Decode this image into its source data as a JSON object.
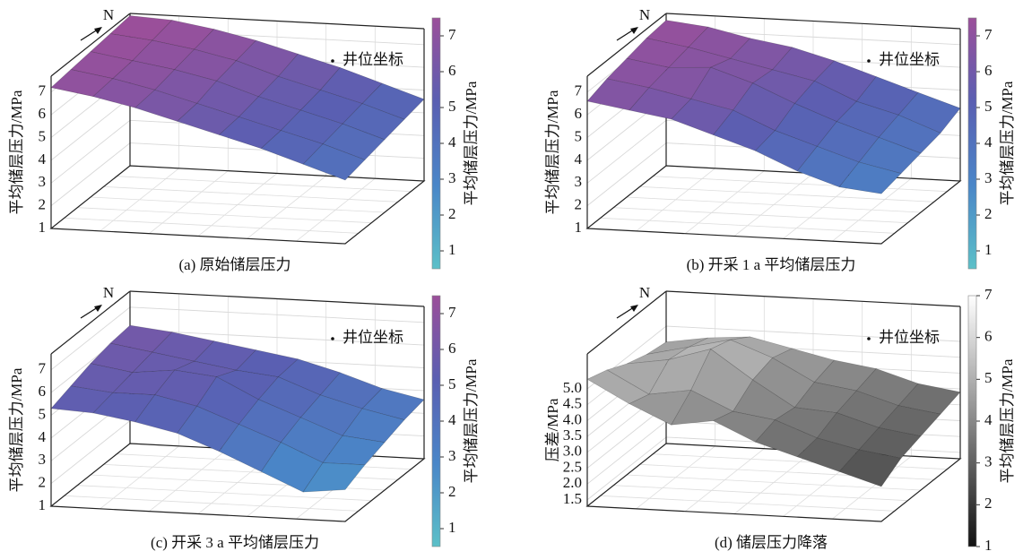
{
  "chart_data": [
    {
      "type": "surface3d",
      "caption": "(a) 原始储层压力",
      "zlabel": "平均储层压力/MPa",
      "north": "N",
      "legend": "井位坐标",
      "zlim": [
        1,
        7.7
      ],
      "zticks": [
        1,
        2,
        3,
        4,
        5,
        6,
        7
      ],
      "z": [
        [
          7.2,
          6.9,
          6.5,
          6.0,
          5.5,
          5.0,
          4.4,
          3.8
        ],
        [
          7.3,
          7.0,
          6.6,
          6.1,
          5.6,
          5.1,
          4.6,
          4.0
        ],
        [
          7.4,
          7.1,
          6.8,
          6.4,
          5.8,
          5.3,
          4.8,
          4.2
        ],
        [
          7.5,
          7.3,
          7.0,
          6.6,
          6.0,
          5.5,
          5.0,
          4.4
        ],
        [
          7.6,
          7.5,
          7.2,
          6.8,
          6.3,
          5.8,
          5.2,
          4.6
        ]
      ],
      "colorbar": {
        "label": "平均储层压力/MPa",
        "lim": [
          0.5,
          7.5
        ],
        "ticks": [
          1,
          2,
          3,
          4,
          5,
          6,
          7
        ],
        "colors": [
          "#5cc0c8",
          "#4a86c8",
          "#5a5fb2",
          "#9b4f9a"
        ]
      }
    },
    {
      "type": "surface3d",
      "caption": "(b) 开采 1 a 平均储层压力",
      "zlabel": "平均储层压力/MPa",
      "north": "N",
      "legend": "井位坐标",
      "zlim": [
        1,
        7.7
      ],
      "zticks": [
        1,
        2,
        3,
        4,
        5,
        6,
        7
      ],
      "z": [
        [
          6.6,
          6.3,
          6.0,
          5.4,
          4.8,
          4.0,
          3.4,
          3.2
        ],
        [
          6.9,
          6.6,
          6.2,
          5.8,
          5.0,
          4.4,
          3.8,
          3.4
        ],
        [
          7.1,
          6.8,
          6.9,
          6.3,
          5.5,
          4.8,
          4.2,
          3.6
        ],
        [
          7.3,
          7.0,
          6.6,
          6.2,
          5.8,
          5.0,
          4.5,
          3.8
        ],
        [
          7.4,
          7.2,
          6.8,
          6.5,
          6.0,
          5.4,
          4.8,
          4.2
        ]
      ],
      "colorbar": {
        "label": "平均储层压力/MPa",
        "lim": [
          0.5,
          7.5
        ],
        "ticks": [
          1,
          2,
          3,
          4,
          5,
          6,
          7
        ],
        "colors": [
          "#5cc0c8",
          "#4a86c8",
          "#5a5fb2",
          "#9b4f9a"
        ]
      }
    },
    {
      "type": "surface3d",
      "caption": "(c) 开采 3 a 平均储层压力",
      "zlabel": "平均储层压力/MPa",
      "north": "N",
      "legend": "井位坐标",
      "zlim": [
        1,
        7.7
      ],
      "zticks": [
        1,
        2,
        3,
        4,
        5,
        6,
        7
      ],
      "z": [
        [
          5.3,
          5.2,
          4.9,
          4.5,
          3.8,
          3.0,
          2.2,
          2.4
        ],
        [
          5.6,
          5.4,
          5.4,
          5.0,
          4.3,
          3.6,
          2.8,
          2.8
        ],
        [
          5.9,
          5.6,
          5.8,
          5.6,
          4.7,
          4.0,
          3.3,
          3.1
        ],
        [
          6.1,
          5.8,
          5.5,
          5.2,
          5.0,
          4.3,
          3.8,
          3.4
        ],
        [
          6.2,
          6.0,
          5.7,
          5.4,
          5.1,
          4.6,
          4.0,
          3.6
        ]
      ],
      "colorbar": {
        "label": "平均储层压力/MPa",
        "lim": [
          0.5,
          7.5
        ],
        "ticks": [
          1,
          2,
          3,
          4,
          5,
          6,
          7
        ],
        "colors": [
          "#5cc0c8",
          "#4a86c8",
          "#5a5fb2",
          "#9b4f9a"
        ]
      }
    },
    {
      "type": "surface3d",
      "caption": "(d) 储层压力降落",
      "zlabel": "压差/MPa",
      "north": "N",
      "legend": "井位坐标",
      "zlim": [
        1.3,
        6.1
      ],
      "zticks": [
        1.5,
        {
          "value": 2,
          "label": "2.0"
        },
        2.5,
        {
          "value": 3,
          "label": "3.0"
        },
        3.5,
        {
          "value": 4,
          "label": "4.0"
        },
        4.5,
        {
          "value": 5,
          "label": "5.0"
        }
      ],
      "z": [
        [
          5.3,
          4.6,
          4.0,
          4.2,
          3.6,
          3.2,
          2.8,
          2.4
        ],
        [
          5.1,
          4.4,
          4.6,
          4.0,
          3.8,
          3.3,
          3.0,
          2.8
        ],
        [
          4.8,
          5.0,
          5.4,
          4.5,
          3.7,
          3.6,
          3.2,
          3.0
        ],
        [
          4.6,
          4.9,
          5.2,
          4.7,
          4.0,
          3.8,
          3.4,
          3.2
        ],
        [
          4.5,
          4.7,
          4.8,
          4.5,
          4.2,
          4.0,
          3.6,
          3.4
        ]
      ],
      "colorbar": {
        "label": "平均储层压力/MPa",
        "lim": [
          1,
          7
        ],
        "ticks": [
          1,
          2,
          3,
          4,
          5,
          6,
          7
        ],
        "colors": [
          "#111111",
          "#ffffff"
        ]
      }
    }
  ]
}
